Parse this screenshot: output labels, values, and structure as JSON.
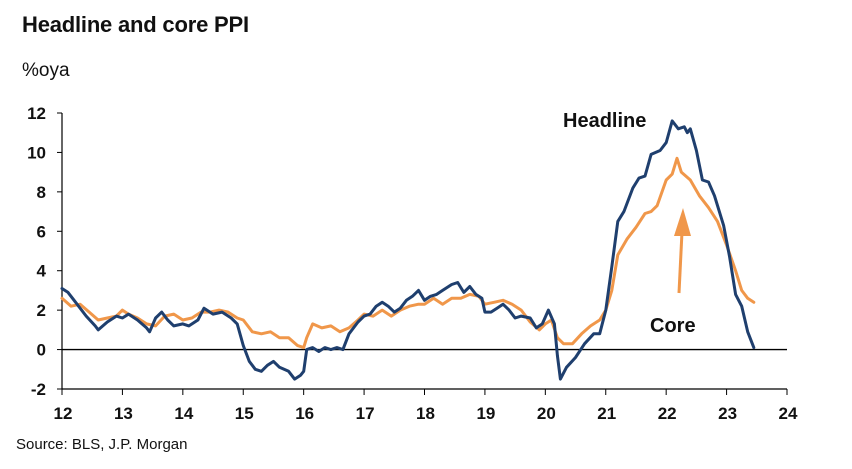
{
  "title": "Headline and core PPI",
  "unit": "%oya",
  "source": "Source: BLS, J.P. Morgan",
  "colors": {
    "headline": "#1f3f6e",
    "core": "#f0974a",
    "axis": "#000000"
  },
  "chart_data": {
    "type": "line",
    "title": "Headline and core PPI",
    "ylabel": "%oya",
    "xlabel": "",
    "xlim": [
      12,
      24
    ],
    "ylim": [
      -2,
      12
    ],
    "x_ticks": [
      "12",
      "13",
      "14",
      "15",
      "16",
      "17",
      "18",
      "19",
      "20",
      "21",
      "22",
      "23",
      "24"
    ],
    "y_ticks": [
      "-2",
      "0",
      "2",
      "4",
      "6",
      "8",
      "10",
      "12"
    ],
    "grid": false,
    "annotations": [
      {
        "text": "Headline",
        "series": "Headline"
      },
      {
        "text": "Core",
        "series": "Core",
        "arrow": true
      }
    ],
    "series": [
      {
        "name": "Headline",
        "color": "#1f3f6e",
        "points": [
          [
            12.0,
            3.1
          ],
          [
            12.1,
            2.9
          ],
          [
            12.2,
            2.5
          ],
          [
            12.4,
            1.7
          ],
          [
            12.55,
            1.2
          ],
          [
            12.6,
            1.0
          ],
          [
            12.75,
            1.4
          ],
          [
            12.9,
            1.7
          ],
          [
            13.0,
            1.6
          ],
          [
            13.1,
            1.8
          ],
          [
            13.25,
            1.5
          ],
          [
            13.4,
            1.1
          ],
          [
            13.45,
            0.9
          ],
          [
            13.55,
            1.6
          ],
          [
            13.65,
            1.9
          ],
          [
            13.75,
            1.5
          ],
          [
            13.85,
            1.2
          ],
          [
            14.0,
            1.3
          ],
          [
            14.1,
            1.2
          ],
          [
            14.25,
            1.5
          ],
          [
            14.35,
            2.1
          ],
          [
            14.5,
            1.8
          ],
          [
            14.65,
            1.9
          ],
          [
            14.8,
            1.6
          ],
          [
            14.9,
            1.3
          ],
          [
            15.0,
            0.2
          ],
          [
            15.1,
            -0.6
          ],
          [
            15.2,
            -1.0
          ],
          [
            15.3,
            -1.1
          ],
          [
            15.4,
            -0.8
          ],
          [
            15.5,
            -0.6
          ],
          [
            15.6,
            -0.9
          ],
          [
            15.75,
            -1.1
          ],
          [
            15.85,
            -1.5
          ],
          [
            15.95,
            -1.3
          ],
          [
            16.0,
            -1.1
          ],
          [
            16.05,
            0.0
          ],
          [
            16.15,
            0.1
          ],
          [
            16.25,
            -0.1
          ],
          [
            16.35,
            0.1
          ],
          [
            16.45,
            0.0
          ],
          [
            16.55,
            0.1
          ],
          [
            16.65,
            0.0
          ],
          [
            16.75,
            0.8
          ],
          [
            16.9,
            1.4
          ],
          [
            17.0,
            1.7
          ],
          [
            17.1,
            1.8
          ],
          [
            17.2,
            2.2
          ],
          [
            17.3,
            2.4
          ],
          [
            17.4,
            2.2
          ],
          [
            17.5,
            1.9
          ],
          [
            17.6,
            2.1
          ],
          [
            17.7,
            2.5
          ],
          [
            17.8,
            2.7
          ],
          [
            17.9,
            3.0
          ],
          [
            18.0,
            2.5
          ],
          [
            18.1,
            2.7
          ],
          [
            18.2,
            2.8
          ],
          [
            18.3,
            3.0
          ],
          [
            18.45,
            3.3
          ],
          [
            18.55,
            3.4
          ],
          [
            18.65,
            2.9
          ],
          [
            18.75,
            3.2
          ],
          [
            18.85,
            2.8
          ],
          [
            18.95,
            2.6
          ],
          [
            19.0,
            1.9
          ],
          [
            19.1,
            1.9
          ],
          [
            19.2,
            2.1
          ],
          [
            19.3,
            2.3
          ],
          [
            19.4,
            2.0
          ],
          [
            19.5,
            1.6
          ],
          [
            19.6,
            1.7
          ],
          [
            19.75,
            1.6
          ],
          [
            19.85,
            1.1
          ],
          [
            19.95,
            1.3
          ],
          [
            20.05,
            2.0
          ],
          [
            20.15,
            1.3
          ],
          [
            20.2,
            -0.3
          ],
          [
            20.25,
            -1.5
          ],
          [
            20.35,
            -0.9
          ],
          [
            20.5,
            -0.4
          ],
          [
            20.65,
            0.3
          ],
          [
            20.8,
            0.8
          ],
          [
            20.9,
            0.8
          ],
          [
            21.0,
            2.0
          ],
          [
            21.1,
            4.2
          ],
          [
            21.2,
            6.5
          ],
          [
            21.3,
            7.0
          ],
          [
            21.45,
            8.2
          ],
          [
            21.55,
            8.7
          ],
          [
            21.65,
            8.8
          ],
          [
            21.75,
            9.9
          ],
          [
            21.9,
            10.1
          ],
          [
            22.0,
            10.5
          ],
          [
            22.1,
            11.6
          ],
          [
            22.2,
            11.2
          ],
          [
            22.3,
            11.3
          ],
          [
            22.35,
            11.0
          ],
          [
            22.4,
            11.2
          ],
          [
            22.5,
            10.1
          ],
          [
            22.6,
            8.6
          ],
          [
            22.7,
            8.5
          ],
          [
            22.8,
            7.8
          ],
          [
            22.95,
            6.3
          ],
          [
            23.05,
            4.7
          ],
          [
            23.15,
            2.8
          ],
          [
            23.25,
            2.2
          ],
          [
            23.35,
            0.9
          ],
          [
            23.45,
            0.1
          ]
        ]
      },
      {
        "name": "Core",
        "color": "#f0974a",
        "points": [
          [
            12.0,
            2.6
          ],
          [
            12.15,
            2.2
          ],
          [
            12.3,
            2.3
          ],
          [
            12.45,
            1.9
          ],
          [
            12.6,
            1.5
          ],
          [
            12.75,
            1.6
          ],
          [
            12.9,
            1.7
          ],
          [
            13.0,
            2.0
          ],
          [
            13.1,
            1.8
          ],
          [
            13.25,
            1.6
          ],
          [
            13.4,
            1.3
          ],
          [
            13.55,
            1.2
          ],
          [
            13.7,
            1.7
          ],
          [
            13.85,
            1.8
          ],
          [
            14.0,
            1.5
          ],
          [
            14.15,
            1.6
          ],
          [
            14.3,
            1.9
          ],
          [
            14.45,
            1.9
          ],
          [
            14.6,
            2.0
          ],
          [
            14.75,
            1.9
          ],
          [
            14.9,
            1.6
          ],
          [
            15.0,
            1.5
          ],
          [
            15.15,
            0.9
          ],
          [
            15.3,
            0.8
          ],
          [
            15.45,
            0.9
          ],
          [
            15.6,
            0.6
          ],
          [
            15.75,
            0.6
          ],
          [
            15.9,
            0.2
          ],
          [
            16.0,
            0.1
          ],
          [
            16.05,
            0.6
          ],
          [
            16.15,
            1.3
          ],
          [
            16.3,
            1.1
          ],
          [
            16.45,
            1.2
          ],
          [
            16.6,
            0.9
          ],
          [
            16.75,
            1.1
          ],
          [
            16.9,
            1.5
          ],
          [
            17.0,
            1.8
          ],
          [
            17.15,
            1.7
          ],
          [
            17.3,
            2.0
          ],
          [
            17.45,
            1.7
          ],
          [
            17.6,
            2.0
          ],
          [
            17.75,
            2.2
          ],
          [
            17.9,
            2.3
          ],
          [
            18.0,
            2.3
          ],
          [
            18.15,
            2.6
          ],
          [
            18.3,
            2.3
          ],
          [
            18.45,
            2.6
          ],
          [
            18.6,
            2.6
          ],
          [
            18.75,
            2.8
          ],
          [
            18.9,
            2.7
          ],
          [
            19.0,
            2.3
          ],
          [
            19.15,
            2.4
          ],
          [
            19.3,
            2.5
          ],
          [
            19.45,
            2.3
          ],
          [
            19.6,
            2.0
          ],
          [
            19.75,
            1.4
          ],
          [
            19.9,
            1.0
          ],
          [
            20.0,
            1.3
          ],
          [
            20.1,
            1.5
          ],
          [
            20.2,
            0.6
          ],
          [
            20.3,
            0.3
          ],
          [
            20.45,
            0.3
          ],
          [
            20.6,
            0.8
          ],
          [
            20.75,
            1.2
          ],
          [
            20.9,
            1.5
          ],
          [
            21.0,
            2.0
          ],
          [
            21.1,
            3.0
          ],
          [
            21.2,
            4.8
          ],
          [
            21.35,
            5.6
          ],
          [
            21.5,
            6.2
          ],
          [
            21.65,
            6.9
          ],
          [
            21.75,
            7.0
          ],
          [
            21.85,
            7.3
          ],
          [
            22.0,
            8.6
          ],
          [
            22.1,
            8.9
          ],
          [
            22.18,
            9.7
          ],
          [
            22.25,
            9.0
          ],
          [
            22.4,
            8.6
          ],
          [
            22.55,
            7.8
          ],
          [
            22.7,
            7.2
          ],
          [
            22.85,
            6.5
          ],
          [
            23.0,
            5.3
          ],
          [
            23.15,
            4.0
          ],
          [
            23.25,
            3.0
          ],
          [
            23.35,
            2.6
          ],
          [
            23.45,
            2.4
          ]
        ]
      }
    ]
  }
}
